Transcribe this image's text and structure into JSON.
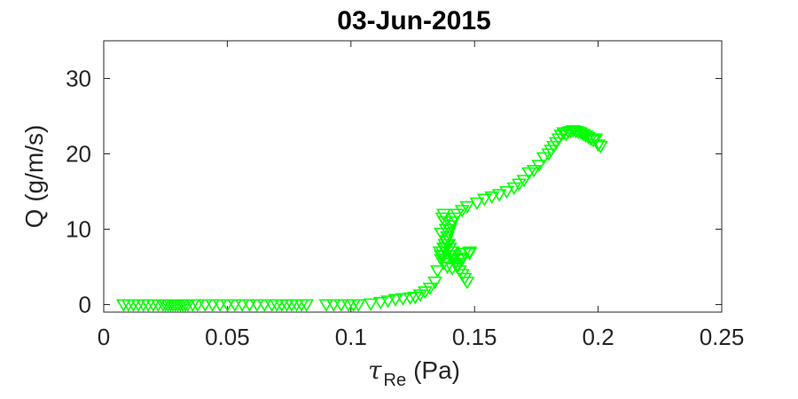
{
  "chart_data": {
    "type": "scatter",
    "title": "03-Jun-2015",
    "xlabel": {
      "symbol": "τ",
      "subscript": "Re",
      "unit": "(Pa)"
    },
    "ylabel": "Q (g/m/s)",
    "xlim": [
      0,
      0.25
    ],
    "ylim": [
      -1,
      35
    ],
    "xticks": [
      0,
      0.05,
      0.1,
      0.15,
      0.2,
      0.25
    ],
    "xtick_labels": [
      "0",
      "0.05",
      "0.1",
      "0.15",
      "0.2",
      "0.25"
    ],
    "yticks": [
      0,
      10,
      20,
      30
    ],
    "ytick_labels": [
      "0",
      "10",
      "20",
      "30"
    ],
    "grid": false,
    "marker": "triangle-down",
    "marker_color": "#00ff00",
    "series": [
      {
        "x": [
          0.008,
          0.01,
          0.012,
          0.014,
          0.016,
          0.018,
          0.02,
          0.022,
          0.024,
          0.025,
          0.026,
          0.027,
          0.028,
          0.029,
          0.03,
          0.031,
          0.032,
          0.033,
          0.034,
          0.036,
          0.038,
          0.041,
          0.044,
          0.047,
          0.05,
          0.053,
          0.056,
          0.059,
          0.062,
          0.065,
          0.068,
          0.07,
          0.072,
          0.074,
          0.076,
          0.078,
          0.08,
          0.082,
          0.09,
          0.093,
          0.096,
          0.099,
          0.101,
          0.103,
          0.108,
          0.112,
          0.115,
          0.118,
          0.121,
          0.124,
          0.126,
          0.128,
          0.13,
          0.132,
          0.134,
          0.135,
          0.136,
          0.1365,
          0.137,
          0.1375,
          0.138,
          0.1385,
          0.139,
          0.1395,
          0.14,
          0.1405,
          0.141,
          0.1415,
          0.142,
          0.143,
          0.144,
          0.145,
          0.146,
          0.147,
          0.1365,
          0.137,
          0.1375,
          0.138,
          0.1385,
          0.139,
          0.1395,
          0.14,
          0.1405,
          0.141,
          0.142,
          0.143,
          0.145,
          0.147,
          0.1365,
          0.137,
          0.138,
          0.139,
          0.14,
          0.141,
          0.142,
          0.144,
          0.146,
          0.148,
          0.1375,
          0.139,
          0.141,
          0.143,
          0.145,
          0.148,
          0.151,
          0.154,
          0.157,
          0.16,
          0.163,
          0.166,
          0.168,
          0.17,
          0.172,
          0.174,
          0.176,
          0.178,
          0.18,
          0.181,
          0.182,
          0.183,
          0.184,
          0.185,
          0.186,
          0.187,
          0.188,
          0.189,
          0.19,
          0.191,
          0.192,
          0.193,
          0.194,
          0.195,
          0.196,
          0.197,
          0.198,
          0.199,
          0.2,
          0.201
        ],
        "y": [
          0,
          0,
          0,
          0,
          0,
          0,
          0,
          0,
          0,
          0,
          0,
          0,
          0,
          0,
          0,
          0,
          0,
          0,
          0,
          0,
          0,
          0,
          0,
          0,
          0,
          0,
          0,
          0,
          0,
          0,
          0,
          0,
          0,
          0,
          0,
          0,
          0,
          0,
          0,
          0,
          0,
          0,
          0,
          0,
          0.1,
          0.3,
          0.5,
          0.7,
          0.8,
          0.9,
          1.0,
          1.3,
          1.7,
          2.2,
          3.0,
          4.5,
          7.0,
          9.5,
          11.5,
          12.0,
          11.0,
          10.0,
          9.0,
          8.0,
          7.5,
          7.0,
          6.5,
          6.0,
          5.5,
          5.0,
          4.5,
          4.0,
          3.5,
          3.0,
          6.5,
          7.0,
          7.5,
          8.0,
          8.5,
          9.0,
          9.5,
          10.0,
          10.5,
          11.0,
          11.5,
          12.0,
          12.5,
          13.0,
          6.0,
          6.5,
          7.5,
          8.0,
          7.5,
          7.0,
          6.5,
          6.2,
          6.8,
          7.0,
          5.5,
          5.0,
          4.8,
          5.2,
          6.0,
          6.8,
          13.5,
          14.0,
          14.3,
          14.6,
          15.0,
          15.5,
          16.0,
          16.5,
          17.5,
          17.8,
          18.5,
          19.5,
          20.0,
          20.5,
          21.0,
          21.5,
          22.0,
          22.5,
          22.8,
          22.6,
          22.9,
          23.0,
          23.1,
          23.0,
          22.9,
          22.8,
          22.6,
          22.4,
          22.2,
          22.0,
          21.8,
          22.0,
          21.2,
          21.0
        ]
      }
    ]
  }
}
